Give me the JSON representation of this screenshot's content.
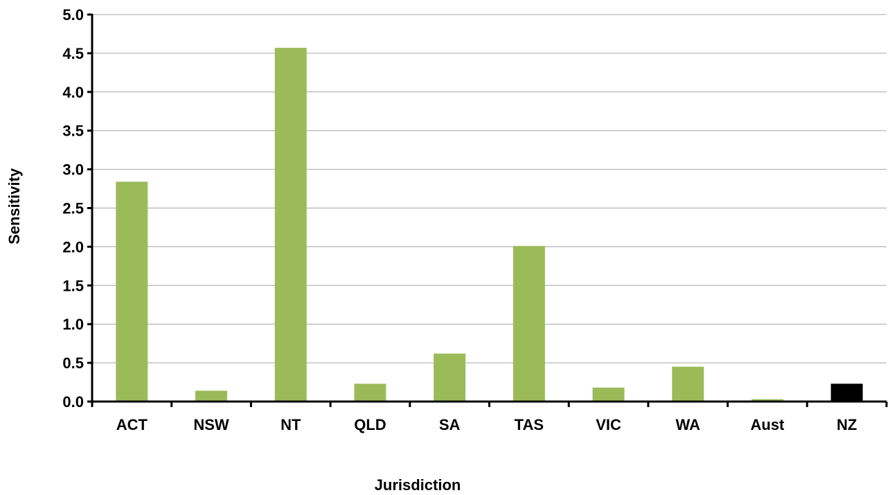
{
  "chart_data": {
    "type": "bar",
    "title": "",
    "xlabel": "Jurisdiction",
    "ylabel": "Sensitivity",
    "categories": [
      "ACT",
      "NSW",
      "NT",
      "QLD",
      "SA",
      "TAS",
      "VIC",
      "WA",
      "Aust",
      "NZ"
    ],
    "values": [
      2.84,
      0.14,
      4.57,
      0.23,
      0.62,
      2.01,
      0.18,
      0.45,
      0.03,
      0.23
    ],
    "bar_colors": [
      "#9bbb59",
      "#9bbb59",
      "#9bbb59",
      "#9bbb59",
      "#9bbb59",
      "#9bbb59",
      "#9bbb59",
      "#9bbb59",
      "#9bbb59",
      "#000000"
    ],
    "ylim": [
      0,
      5
    ],
    "yticks": [
      "0.0",
      "0.5",
      "1.0",
      "1.5",
      "2.0",
      "2.5",
      "3.0",
      "3.5",
      "4.0",
      "4.5",
      "5.0"
    ],
    "grid": true,
    "legend": "none"
  }
}
